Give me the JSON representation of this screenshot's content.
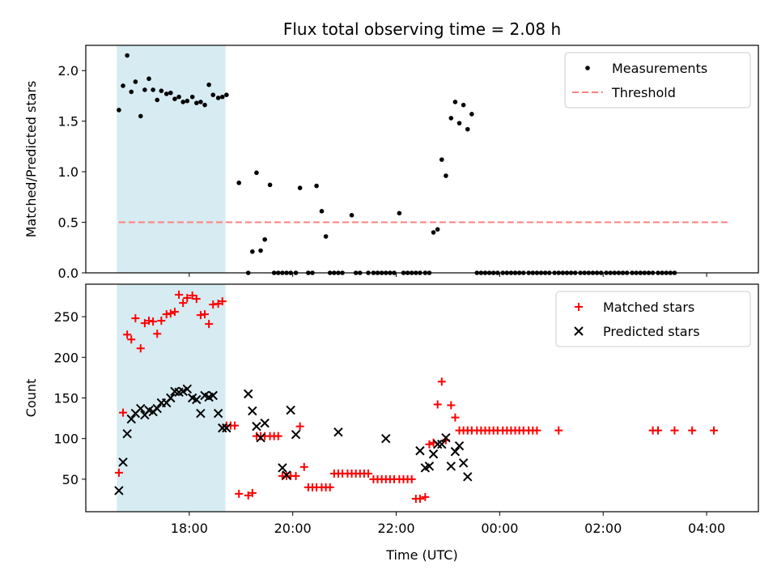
{
  "chart_data": [
    {
      "type": "scatter",
      "panel": "top",
      "title": "Flux total observing time = 2.08 h",
      "xlabel": "",
      "ylabel": "Matched/Predicted stars",
      "ylim": [
        0,
        2.25
      ],
      "yticks": [
        0.0,
        0.5,
        1.0,
        1.5,
        2.0
      ],
      "ytick_labels": [
        "0.0",
        "0.5",
        "1.0",
        "1.5",
        "2.0"
      ],
      "xlim": [
        16.6,
        23.1
      ],
      "shaded_region": {
        "x": [
          16.9,
          17.95
        ],
        "color": "#add8e6"
      },
      "legend_position": "top-right",
      "series": [
        {
          "name": "Measurements",
          "marker": "dot",
          "color": "#000000",
          "x": [
            16.92,
            16.96,
            17.0,
            17.04,
            17.08,
            17.13,
            17.17,
            17.21,
            17.25,
            17.29,
            17.33,
            17.38,
            17.42,
            17.46,
            17.5,
            17.54,
            17.58,
            17.63,
            17.67,
            17.71,
            17.75,
            17.79,
            17.83,
            17.88,
            17.92,
            17.96,
            18.08,
            18.17,
            18.21,
            18.25,
            18.29,
            18.33,
            18.38,
            18.42,
            18.46,
            18.5,
            18.54,
            18.58,
            18.63,
            18.67,
            18.75,
            18.79,
            18.83,
            18.88,
            18.92,
            18.96,
            19.0,
            19.04,
            19.08,
            19.17,
            19.21,
            19.25,
            19.33,
            19.38,
            19.42,
            19.46,
            19.5,
            19.54,
            19.58,
            19.63,
            19.67,
            19.71,
            19.75,
            19.79,
            19.83,
            19.88,
            19.92,
            19.96,
            20.0,
            20.04,
            20.08,
            20.13,
            20.17,
            20.21,
            20.25,
            20.29,
            20.33,
            20.38,
            20.42,
            20.46,
            20.5,
            20.54,
            20.58,
            20.63,
            20.67,
            20.71,
            20.75,
            20.79,
            20.83,
            20.88,
            20.92,
            20.96,
            21.0,
            21.04,
            21.08,
            21.13,
            21.17,
            21.21,
            21.25,
            21.29,
            21.33,
            21.38,
            21.42,
            21.46,
            21.5,
            21.54,
            21.58,
            21.63,
            21.67,
            21.71,
            21.75,
            21.79,
            21.83,
            21.88,
            21.92,
            21.96,
            22.0,
            22.04,
            22.08,
            22.13,
            22.17,
            22.21,
            22.25,
            22.29
          ],
          "y": [
            1.61,
            1.85,
            2.15,
            1.79,
            1.89,
            1.55,
            1.81,
            1.92,
            1.81,
            1.71,
            1.8,
            1.77,
            1.78,
            1.72,
            1.74,
            1.69,
            1.7,
            1.74,
            1.68,
            1.69,
            1.66,
            1.86,
            1.76,
            1.73,
            1.74,
            1.76,
            0.89,
            0.0,
            0.21,
            0.99,
            0.22,
            0.33,
            0.87,
            0.0,
            0.0,
            0.0,
            0.0,
            0.0,
            0.0,
            0.84,
            0.0,
            0.0,
            0.86,
            0.61,
            0.36,
            0.0,
            0.0,
            0.0,
            0.0,
            0.57,
            0.0,
            0.0,
            0.0,
            0.0,
            0.0,
            0.0,
            0.0,
            0.0,
            0.0,
            0.59,
            0.0,
            0.0,
            0.0,
            0.0,
            0.0,
            0.0,
            0.0,
            0.4,
            0.43,
            1.12,
            0.96,
            1.53,
            1.69,
            1.48,
            1.66,
            1.42,
            1.57,
            0.0,
            0.0,
            0.0,
            0.0,
            0.0,
            0.0,
            0.0,
            0.0,
            0.0,
            0.0,
            0.0,
            0.0,
            0.0,
            0.0,
            0.0,
            0.0,
            0.0,
            0.0,
            0.0,
            0.0,
            0.0,
            0.0,
            0.0,
            0.0,
            0.0,
            0.0,
            0.0,
            0.0,
            0.0,
            0.0,
            0.0,
            0.0,
            0.0,
            0.0,
            0.0,
            0.0,
            0.0,
            0.0,
            0.0,
            0.0,
            0.0,
            0.0,
            0.0,
            0.0,
            0.0,
            0.0,
            0.0
          ]
        },
        {
          "name": "Threshold",
          "marker": "dashed-line",
          "color": "#ff7f7f",
          "x": [
            16.92,
            22.83
          ],
          "y": [
            0.5,
            0.5
          ]
        }
      ]
    },
    {
      "type": "scatter",
      "panel": "bottom",
      "xlabel": "Time (UTC)",
      "ylabel": "Count",
      "ylim": [
        10,
        290
      ],
      "yticks": [
        50,
        100,
        150,
        200,
        250
      ],
      "ytick_labels": [
        "50",
        "100",
        "150",
        "200",
        "250"
      ],
      "xlim": [
        16.6,
        23.1
      ],
      "xticks": [
        17.6,
        18.6,
        19.6,
        20.6,
        21.6,
        22.6
      ],
      "xtick_labels": [
        "18:00",
        "20:00",
        "22:00",
        "00:00",
        "02:00",
        "04:00"
      ],
      "shaded_region": {
        "x": [
          16.9,
          17.95
        ],
        "color": "#add8e6"
      },
      "legend_position": "top-right",
      "series": [
        {
          "name": "Matched stars",
          "marker": "plus",
          "color": "#ff0000",
          "x": [
            16.92,
            16.96,
            17.0,
            17.04,
            17.08,
            17.13,
            17.17,
            17.21,
            17.25,
            17.29,
            17.33,
            17.38,
            17.42,
            17.46,
            17.5,
            17.54,
            17.58,
            17.63,
            17.67,
            17.71,
            17.75,
            17.79,
            17.83,
            17.88,
            17.92,
            17.96,
            18.0,
            18.04,
            18.08,
            18.17,
            18.21,
            18.25,
            18.29,
            18.33,
            18.38,
            18.42,
            18.46,
            18.5,
            18.54,
            18.58,
            18.63,
            18.67,
            18.71,
            18.75,
            18.79,
            18.83,
            18.88,
            18.92,
            18.96,
            19.0,
            19.04,
            19.08,
            19.13,
            19.17,
            19.21,
            19.25,
            19.29,
            19.33,
            19.38,
            19.42,
            19.46,
            19.5,
            19.54,
            19.58,
            19.63,
            19.67,
            19.71,
            19.75,
            19.79,
            19.83,
            19.88,
            19.92,
            19.96,
            20.0,
            20.04,
            20.08,
            20.13,
            20.17,
            20.21,
            20.25,
            20.29,
            20.33,
            20.38,
            20.42,
            20.46,
            20.5,
            20.54,
            20.58,
            20.63,
            20.67,
            20.71,
            20.75,
            20.79,
            20.83,
            20.88,
            20.92,
            20.96,
            21.17,
            22.08,
            22.13,
            22.29,
            22.46,
            22.67
          ],
          "y": [
            58,
            132,
            228,
            222,
            248,
            211,
            242,
            245,
            244,
            229,
            245,
            253,
            254,
            256,
            277,
            267,
            273,
            276,
            272,
            252,
            253,
            241,
            265,
            266,
            269,
            116,
            116,
            116,
            32,
            30,
            33,
            103,
            103,
            103,
            103,
            103,
            103,
            54,
            54,
            54,
            54,
            115,
            65,
            40,
            40,
            40,
            40,
            40,
            40,
            57,
            57,
            57,
            57,
            57,
            57,
            57,
            57,
            57,
            50,
            50,
            50,
            50,
            50,
            50,
            50,
            50,
            50,
            50,
            26,
            26,
            28,
            93,
            95,
            142,
            170,
            98,
            141,
            126,
            110,
            110,
            110,
            110,
            110,
            110,
            110,
            110,
            110,
            110,
            110,
            110,
            110,
            110,
            110,
            110,
            110,
            110,
            110,
            110,
            110,
            110,
            110,
            110,
            110
          ]
        },
        {
          "name": "Predicted stars",
          "marker": "x",
          "color": "#000000",
          "x": [
            16.92,
            16.96,
            17.0,
            17.04,
            17.08,
            17.13,
            17.17,
            17.21,
            17.25,
            17.29,
            17.33,
            17.38,
            17.42,
            17.46,
            17.5,
            17.54,
            17.58,
            17.63,
            17.67,
            17.71,
            17.75,
            17.79,
            17.83,
            17.88,
            17.92,
            17.96,
            18.17,
            18.21,
            18.25,
            18.29,
            18.33,
            18.5,
            18.54,
            18.58,
            18.63,
            19.04,
            19.5,
            19.83,
            19.88,
            19.92,
            19.96,
            20.0,
            20.04,
            20.08,
            20.13,
            20.17,
            20.21,
            20.25,
            20.29
          ],
          "y": [
            36,
            71,
            106,
            124,
            131,
            137,
            129,
            135,
            133,
            137,
            144,
            144,
            150,
            158,
            157,
            158,
            161,
            150,
            148,
            131,
            153,
            151,
            153,
            131,
            113,
            113,
            155,
            134,
            115,
            101,
            119,
            64,
            55,
            135,
            105,
            108,
            100,
            85,
            64,
            66,
            81,
            93,
            93,
            101,
            66,
            84,
            91,
            70,
            53
          ]
        }
      ]
    }
  ]
}
